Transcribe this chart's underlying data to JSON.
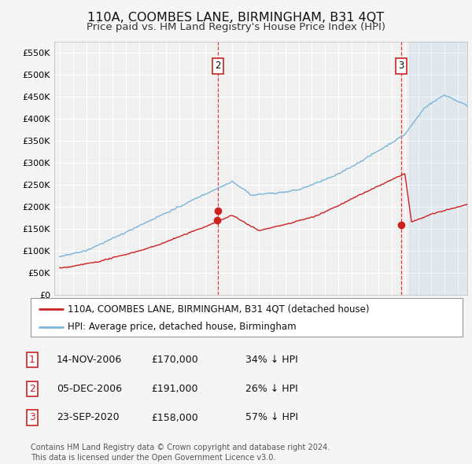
{
  "title": "110A, COOMBES LANE, BIRMINGHAM, B31 4QT",
  "subtitle": "Price paid vs. HM Land Registry's House Price Index (HPI)",
  "ylim": [
    0,
    575000
  ],
  "yticks": [
    0,
    50000,
    100000,
    150000,
    200000,
    250000,
    300000,
    350000,
    400000,
    450000,
    500000,
    550000
  ],
  "background_color": "#f5f5f5",
  "plot_bg_color": "#f0f0f0",
  "grid_color": "#ffffff",
  "hpi_color": "#7ab5d8",
  "price_color": "#cc2222",
  "vline_color": "#cc2222",
  "marker_color": "#cc2222",
  "t1_yr": 2006.873,
  "t2_yr": 2006.921,
  "t3_yr": 2020.728,
  "t1_price": 170000,
  "t2_price": 191000,
  "t3_price": 158000,
  "annotation_box_fc": "#ffffff",
  "annotation_box_ec": "#cc2222",
  "transaction_labels": [
    {
      "num": "1",
      "date": "14-NOV-2006",
      "price": "£170,000",
      "pct": "34% ↓ HPI"
    },
    {
      "num": "2",
      "date": "05-DEC-2006",
      "price": "£191,000",
      "pct": "26% ↓ HPI"
    },
    {
      "num": "3",
      "date": "23-SEP-2020",
      "price": "£158,000",
      "pct": "57% ↓ HPI"
    }
  ],
  "legend_entries": [
    {
      "label": "110A, COOMBES LANE, BIRMINGHAM, B31 4QT (detached house)",
      "color": "#cc2222"
    },
    {
      "label": "HPI: Average price, detached house, Birmingham",
      "color": "#7ab5d8"
    }
  ],
  "footer": "Contains HM Land Registry data © Crown copyright and database right 2024.\nThis data is licensed under the Open Government Licence v3.0.",
  "title_fontsize": 11.5,
  "subtitle_fontsize": 9.5,
  "tick_fontsize": 8,
  "label_fontsize": 9,
  "footer_fontsize": 7
}
